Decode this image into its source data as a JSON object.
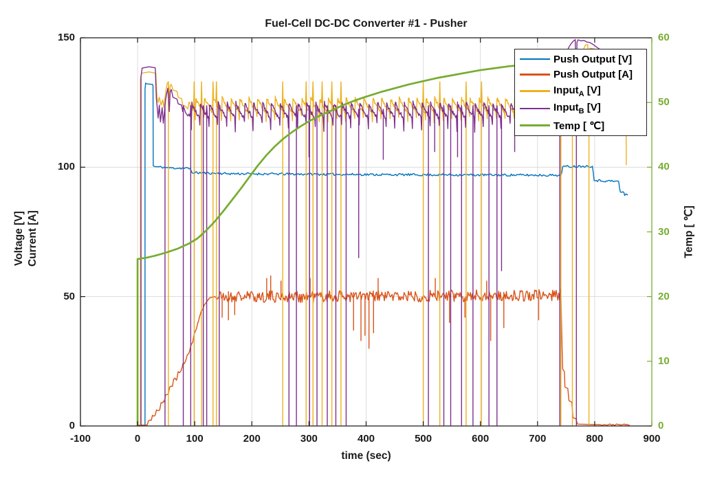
{
  "title": "Fuel-Cell DC-DC Converter #1 - Pusher",
  "axes": {
    "x": {
      "label": "time (sec)",
      "min": -100,
      "max": 900,
      "ticks": [
        -100,
        0,
        100,
        200,
        300,
        400,
        500,
        600,
        700,
        800,
        900
      ],
      "grid": [
        0,
        100,
        200,
        300,
        400,
        500,
        600,
        700,
        800
      ]
    },
    "y_left": {
      "label": [
        "Voltage [V]",
        "Current [A]"
      ],
      "min": 0,
      "max": 150,
      "ticks": [
        0,
        50,
        100,
        150
      ],
      "grid": [
        50,
        100
      ],
      "color": "#1a1a1a"
    },
    "y_right": {
      "label": "Temp [ ℃]",
      "min": 0,
      "max": 60,
      "ticks": [
        0,
        10,
        20,
        30,
        40,
        50,
        60
      ],
      "grid": [],
      "color": "#77AC30"
    }
  },
  "legend": {
    "items": [
      {
        "id": "push-output-v",
        "pre": "Push Output [V]",
        "color": "#0072BD",
        "thick": false
      },
      {
        "id": "push-output-a",
        "pre": "Push Output [A]",
        "color": "#D95319",
        "thick": false
      },
      {
        "id": "input-a",
        "pre": "Input",
        "sub": "A",
        "post": " [V]",
        "color": "#EDB120",
        "thick": false
      },
      {
        "id": "input-b",
        "pre": "Input",
        "sub": "B",
        "post": " [V]",
        "color": "#7E2F8E",
        "thick": false
      },
      {
        "id": "temp",
        "pre": "Temp [ ℃]",
        "color": "#77AC30",
        "thick": true
      }
    ]
  },
  "chart_data": {
    "type": "line",
    "title": "Fuel-Cell DC-DC Converter #1 - Pusher",
    "xlabel": "time (sec)",
    "xlim": [
      -100,
      900
    ],
    "ylabel_left": "Voltage [V] / Current [A]",
    "ylim_left": [
      0,
      150
    ],
    "ylabel_right": "Temp [ ℃]",
    "ylim_right": [
      0,
      60
    ],
    "grid": true,
    "legend_position": "northeast",
    "series": [
      {
        "id": "push-output-v",
        "name": "Push Output [V]",
        "axis": "left",
        "color": "#0072BD",
        "width": 1.4,
        "keypoints": [
          [
            13,
            0
          ],
          [
            13,
            130
          ],
          [
            14,
            132.5
          ],
          [
            16,
            132.2
          ],
          [
            26,
            132
          ],
          [
            27,
            131.5
          ],
          [
            27.4,
            100.6
          ],
          [
            30,
            100.2
          ],
          [
            60,
            99.7
          ],
          [
            92,
            99.5
          ],
          [
            95,
            97.9
          ],
          [
            160,
            97.5
          ],
          [
            300,
            97.3
          ],
          [
            450,
            97.1
          ],
          [
            600,
            97
          ],
          [
            740,
            96.9
          ],
          [
            742,
            97.4
          ],
          [
            744,
            100.2
          ],
          [
            780,
            100.4
          ],
          [
            796,
            100.4
          ],
          [
            797.5,
            98
          ],
          [
            799,
            94.9
          ],
          [
            820,
            94.7
          ],
          [
            842,
            94.5
          ],
          [
            843.5,
            92
          ],
          [
            845,
            90.4
          ],
          [
            851,
            90.3
          ],
          [
            852.5,
            89.1
          ],
          [
            855,
            89.7
          ],
          [
            858,
            89.2
          ]
        ],
        "noise_zones": [
          {
            "from": 29,
            "to": 856,
            "amp": 0.45,
            "dt": 2,
            "seed": 11
          }
        ]
      },
      {
        "id": "push-output-a",
        "name": "Push Output [A]",
        "axis": "left",
        "color": "#D95319",
        "width": 1.4,
        "keypoints": [
          [
            1,
            0.3
          ],
          [
            17,
            0.4
          ],
          [
            19,
            2
          ],
          [
            24,
            2.2
          ],
          [
            26,
            4.1
          ],
          [
            31,
            4.2
          ],
          [
            33,
            6.2
          ],
          [
            39,
            6.5
          ],
          [
            41,
            9
          ],
          [
            47,
            9.2
          ],
          [
            49,
            12
          ],
          [
            54,
            12.4
          ],
          [
            56,
            15
          ],
          [
            61,
            15.3
          ],
          [
            63,
            18
          ],
          [
            69,
            18.4
          ],
          [
            71,
            21
          ],
          [
            76,
            21.3
          ],
          [
            79,
            24
          ],
          [
            84,
            25
          ],
          [
            87,
            27.5
          ],
          [
            91,
            29
          ],
          [
            94,
            31.5
          ],
          [
            97,
            33
          ],
          [
            99,
            35.5
          ],
          [
            103,
            37.5
          ],
          [
            106,
            40
          ],
          [
            109,
            42.5
          ],
          [
            112,
            44.5
          ],
          [
            116,
            46.5
          ],
          [
            121,
            48
          ],
          [
            126,
            49.5
          ],
          [
            135,
            50
          ],
          [
            300,
            50
          ],
          [
            500,
            50.2
          ],
          [
            741,
            50.5
          ],
          [
            743,
            30
          ],
          [
            744,
            22
          ],
          [
            747,
            21
          ],
          [
            748,
            15
          ],
          [
            753,
            14.5
          ],
          [
            755,
            9.8
          ],
          [
            760,
            9.2
          ],
          [
            762,
            3.2
          ],
          [
            767,
            2.8
          ],
          [
            770,
            0.7
          ],
          [
            810,
            0.5
          ],
          [
            861,
            0.5
          ]
        ],
        "noise_zones": [
          {
            "from": 18,
            "to": 117,
            "amp": 0.7,
            "dt": 2.5,
            "seed": 22
          },
          {
            "from": 134,
            "to": 741.5,
            "amp": 2.3,
            "dt": 1.5,
            "seed": 21
          },
          {
            "from": 771,
            "to": 862,
            "amp": 0.25,
            "dt": 2,
            "seed": 23
          }
        ],
        "dips": [
          [
            148,
            42
          ],
          [
            159,
            41
          ],
          [
            170,
            43
          ],
          [
            378,
            37
          ],
          [
            391,
            33
          ],
          [
            398,
            35
          ],
          [
            405,
            30
          ],
          [
            413,
            36
          ],
          [
            546,
            40
          ],
          [
            573,
            42
          ],
          [
            618,
            33
          ],
          [
            641,
            38
          ],
          [
            702,
            41
          ]
        ],
        "peaks": [
          [
            226,
            57
          ],
          [
            233,
            58
          ],
          [
            251,
            56
          ],
          [
            302,
            57
          ],
          [
            421,
            57
          ],
          [
            521,
            57
          ],
          [
            611,
            56
          ]
        ]
      },
      {
        "id": "input-a",
        "name": "Input_A [V]",
        "axis": "left",
        "color": "#EDB120",
        "width": 1.4,
        "keypoints": [
          [
            5,
            0
          ],
          [
            5,
            134
          ],
          [
            7,
            136.3
          ],
          [
            20,
            136.8
          ],
          [
            32,
            136.3
          ],
          [
            33,
            131
          ],
          [
            34,
            127
          ],
          [
            36,
            125
          ],
          [
            38,
            127
          ],
          [
            41,
            124
          ],
          [
            44,
            126
          ],
          [
            46,
            123
          ],
          [
            48,
            127
          ],
          [
            50,
            130
          ],
          [
            52,
            132.5
          ],
          [
            54,
            133
          ],
          [
            55.5,
            126
          ],
          [
            57,
            131.5
          ],
          [
            59,
            132
          ],
          [
            62,
            129.8
          ],
          [
            69,
            129.3
          ],
          [
            71,
            127
          ],
          [
            77,
            126.5
          ],
          [
            79,
            124
          ],
          [
            84,
            123.5
          ],
          [
            88,
            122.5
          ],
          [
            743,
            128
          ],
          [
            745,
            135
          ],
          [
            748,
            141
          ],
          [
            752,
            144
          ],
          [
            760,
            145.4
          ],
          [
            781,
            145.8
          ],
          [
            784,
            147.2
          ],
          [
            788,
            147.3
          ],
          [
            792,
            146
          ],
          [
            800,
            145.6
          ],
          [
            830,
            145.4
          ],
          [
            853,
            145.2
          ],
          [
            855,
            145
          ],
          [
            855.3,
            101
          ],
          [
            855.6,
            100.8
          ]
        ],
        "band": {
          "from": 90,
          "to": 741,
          "base": 121.2,
          "peak": 126.8,
          "period": 15.5,
          "phase": 4,
          "decay": 1.4,
          "dip": 3.5,
          "noise": 0.7,
          "seed": 31,
          "dt": 1
        },
        "zero_spikes": [
          54,
          99,
          112,
          132,
          138,
          254,
          295,
          307,
          323,
          340,
          356,
          500,
          529,
          575,
          602,
          741,
          761,
          790
        ]
      },
      {
        "id": "input-b",
        "name": "Input_B [V]",
        "axis": "left",
        "color": "#7E2F8E",
        "width": 1.4,
        "keypoints": [
          [
            6,
            0
          ],
          [
            6,
            135
          ],
          [
            8,
            138.3
          ],
          [
            20,
            138.8
          ],
          [
            31,
            138.4
          ],
          [
            32,
            132
          ],
          [
            33,
            126
          ],
          [
            34,
            124
          ],
          [
            36,
            119
          ],
          [
            38,
            124
          ],
          [
            40,
            117.5
          ],
          [
            43,
            123
          ],
          [
            45,
            117
          ],
          [
            47,
            121.5
          ],
          [
            49,
            126
          ],
          [
            51,
            128.5
          ],
          [
            53,
            130.5
          ],
          [
            55.5,
            121.5
          ],
          [
            57,
            129
          ],
          [
            59,
            130
          ],
          [
            62,
            127
          ],
          [
            69,
            126.3
          ],
          [
            71,
            124.5
          ],
          [
            77,
            124
          ],
          [
            79,
            121.5
          ],
          [
            84,
            121
          ],
          [
            88,
            119.8
          ],
          [
            740,
            121
          ],
          [
            743,
            130
          ],
          [
            746,
            138
          ],
          [
            750,
            143
          ],
          [
            754,
            146
          ],
          [
            758,
            147.5
          ],
          [
            762,
            148.6
          ],
          [
            766,
            149.3
          ],
          [
            769,
            148.2
          ],
          [
            771,
            149.2
          ],
          [
            776,
            148.8
          ],
          [
            781,
            149
          ],
          [
            786,
            148.4
          ],
          [
            791,
            148.2
          ],
          [
            796,
            147.6
          ],
          [
            801,
            146.8
          ],
          [
            806,
            146
          ],
          [
            812,
            145.2
          ],
          [
            820,
            144.7
          ],
          [
            840,
            144.4
          ],
          [
            856,
            144.2
          ]
        ],
        "band": {
          "from": 90,
          "to": 738,
          "base": 119,
          "peak": 124.8,
          "period": 15.5,
          "phase": 11,
          "decay": 1.4,
          "dip": 5,
          "noise": 0.8,
          "seed": 41,
          "dt": 1
        },
        "zero_spikes": [
          48,
          80,
          93,
          115,
          121,
          143,
          265,
          278,
          301,
          314,
          332,
          347,
          365,
          509,
          536,
          548,
          567,
          587,
          615,
          629,
          739,
          768
        ],
        "dips": [
          [
            300,
            104
          ],
          [
            387,
            65
          ],
          [
            430,
            103
          ],
          [
            520,
            106
          ],
          [
            560,
            104
          ],
          [
            637,
            60
          ],
          [
            660,
            106
          ]
        ]
      },
      {
        "id": "temp",
        "name": "Temp [℃]",
        "axis": "right",
        "color": "#77AC30",
        "width": 2.7,
        "keypoints": [
          [
            0,
            0
          ],
          [
            0,
            25.8
          ],
          [
            15,
            26
          ],
          [
            30,
            26.3
          ],
          [
            50,
            26.8
          ],
          [
            70,
            27.4
          ],
          [
            90,
            28.2
          ],
          [
            105,
            29
          ],
          [
            120,
            30.2
          ],
          [
            135,
            31.6
          ],
          [
            150,
            33.2
          ],
          [
            165,
            34.9
          ],
          [
            180,
            36.6
          ],
          [
            195,
            38.4
          ],
          [
            210,
            40.2
          ],
          [
            225,
            41.8
          ],
          [
            240,
            43.2
          ],
          [
            255,
            44.4
          ],
          [
            270,
            45.4
          ],
          [
            285,
            46.3
          ],
          [
            300,
            47.1
          ],
          [
            320,
            48
          ],
          [
            340,
            48.8
          ],
          [
            360,
            49.6
          ],
          [
            380,
            50.3
          ],
          [
            400,
            50.9
          ],
          [
            425,
            51.6
          ],
          [
            450,
            52.2
          ],
          [
            475,
            52.8
          ],
          [
            500,
            53.3
          ],
          [
            525,
            53.8
          ],
          [
            550,
            54.2
          ],
          [
            575,
            54.6
          ],
          [
            600,
            55
          ],
          [
            625,
            55.3
          ],
          [
            650,
            55.6
          ],
          [
            662,
            55.7
          ]
        ]
      }
    ]
  }
}
